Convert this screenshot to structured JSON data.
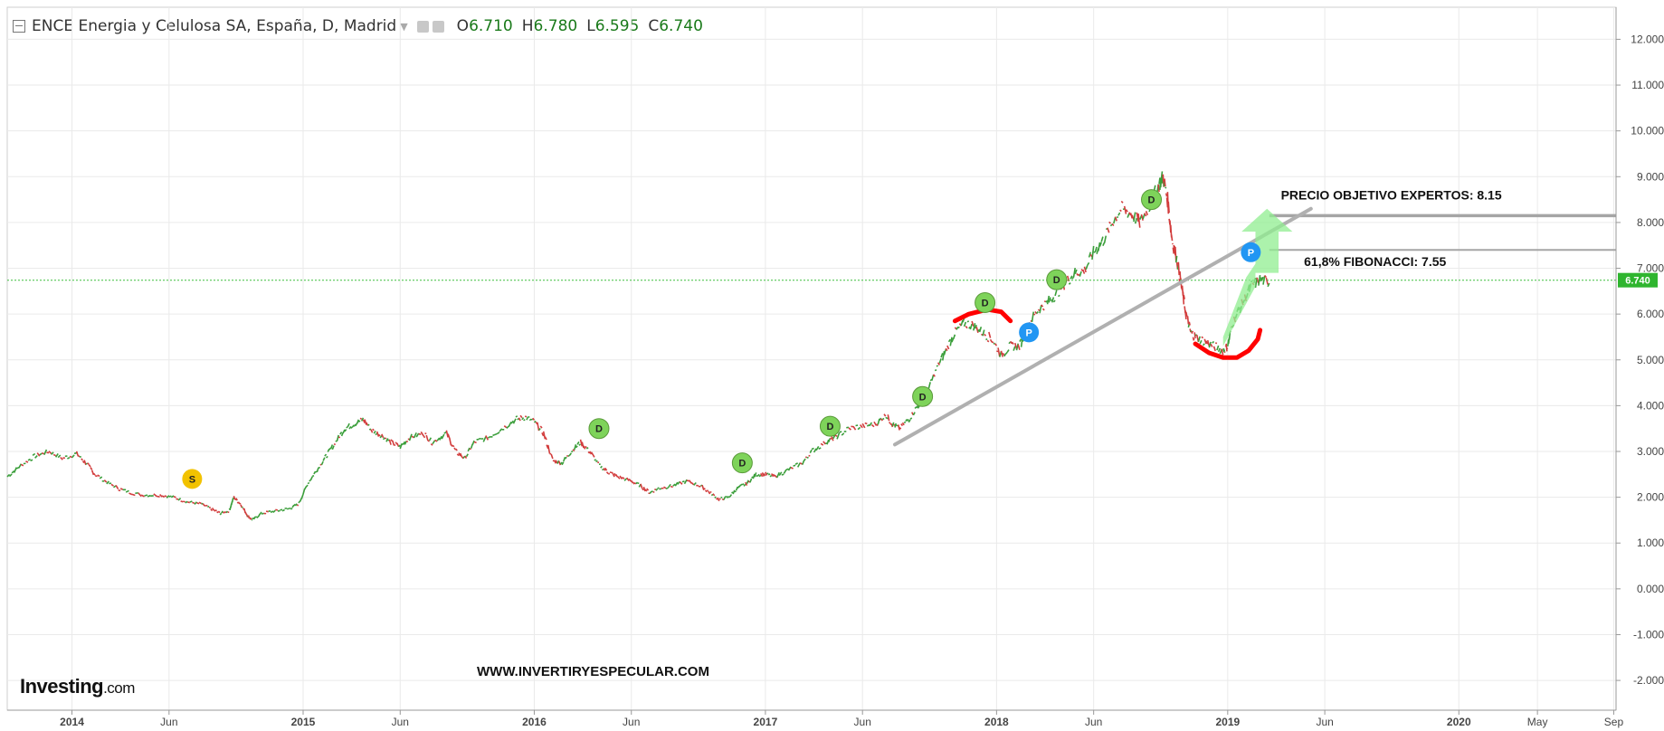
{
  "header": {
    "title": "ENCE Energia y Celulosa SA, España, D, Madrid",
    "o_label": "O",
    "o_value": "6.710",
    "h_label": "H",
    "h_value": "6.780",
    "l_label": "L",
    "l_value": "6.595",
    "c_label": "C",
    "c_value": "6.740"
  },
  "chart_data": {
    "type": "line",
    "title": "ENCE Energia y Celulosa SA, España, D, Madrid",
    "y_ticks": [
      "12.000",
      "11.000",
      "10.000",
      "9.000",
      "8.000",
      "7.000",
      "6.000",
      "5.000",
      "4.000",
      "3.000",
      "2.000",
      "1.000",
      "0.000",
      "-1.000",
      "-2.000"
    ],
    "x_ticks": [
      {
        "label": "2014",
        "t": 2014.0,
        "bold": true
      },
      {
        "label": "Jun",
        "t": 2014.42,
        "bold": false
      },
      {
        "label": "2015",
        "t": 2015.0,
        "bold": true
      },
      {
        "label": "Jun",
        "t": 2015.42,
        "bold": false
      },
      {
        "label": "2016",
        "t": 2016.0,
        "bold": true
      },
      {
        "label": "Jun",
        "t": 2016.42,
        "bold": false
      },
      {
        "label": "2017",
        "t": 2017.0,
        "bold": true
      },
      {
        "label": "Jun",
        "t": 2017.42,
        "bold": false
      },
      {
        "label": "2018",
        "t": 2018.0,
        "bold": true
      },
      {
        "label": "Jun",
        "t": 2018.42,
        "bold": false
      },
      {
        "label": "2019",
        "t": 2019.0,
        "bold": true
      },
      {
        "label": "Jun",
        "t": 2019.42,
        "bold": false
      },
      {
        "label": "2020",
        "t": 2020.0,
        "bold": true
      },
      {
        "label": "May",
        "t": 2020.34,
        "bold": false
      },
      {
        "label": "Sep",
        "t": 2020.67,
        "bold": false
      }
    ],
    "xlim": [
      2013.72,
      2020.68
    ],
    "ylim": [
      -2.65,
      12.7
    ],
    "price_series": {
      "name": "",
      "points": [
        [
          2013.72,
          2.45
        ],
        [
          2013.78,
          2.7
        ],
        [
          2013.84,
          2.9
        ],
        [
          2013.9,
          3.0
        ],
        [
          2013.96,
          2.85
        ],
        [
          2014.02,
          2.95
        ],
        [
          2014.06,
          2.75
        ],
        [
          2014.1,
          2.5
        ],
        [
          2014.16,
          2.3
        ],
        [
          2014.22,
          2.15
        ],
        [
          2014.3,
          2.05
        ],
        [
          2014.38,
          2.05
        ],
        [
          2014.44,
          2.0
        ],
        [
          2014.5,
          1.9
        ],
        [
          2014.56,
          1.85
        ],
        [
          2014.6,
          1.75
        ],
        [
          2014.64,
          1.65
        ],
        [
          2014.68,
          1.7
        ],
        [
          2014.7,
          2.0
        ],
        [
          2014.73,
          1.85
        ],
        [
          2014.76,
          1.6
        ],
        [
          2014.78,
          1.5
        ],
        [
          2014.82,
          1.65
        ],
        [
          2014.88,
          1.7
        ],
        [
          2014.94,
          1.75
        ],
        [
          2014.98,
          1.85
        ],
        [
          2015.02,
          2.3
        ],
        [
          2015.06,
          2.6
        ],
        [
          2015.1,
          2.9
        ],
        [
          2015.14,
          3.2
        ],
        [
          2015.18,
          3.5
        ],
        [
          2015.22,
          3.6
        ],
        [
          2015.26,
          3.7
        ],
        [
          2015.3,
          3.45
        ],
        [
          2015.34,
          3.35
        ],
        [
          2015.38,
          3.2
        ],
        [
          2015.42,
          3.1
        ],
        [
          2015.46,
          3.3
        ],
        [
          2015.52,
          3.4
        ],
        [
          2015.56,
          3.2
        ],
        [
          2015.62,
          3.4
        ],
        [
          2015.66,
          3.0
        ],
        [
          2015.7,
          2.85
        ],
        [
          2015.74,
          3.2
        ],
        [
          2015.8,
          3.3
        ],
        [
          2015.86,
          3.5
        ],
        [
          2015.92,
          3.7
        ],
        [
          2015.96,
          3.75
        ],
        [
          2016.0,
          3.65
        ],
        [
          2016.04,
          3.4
        ],
        [
          2016.08,
          2.8
        ],
        [
          2016.12,
          2.75
        ],
        [
          2016.16,
          3.0
        ],
        [
          2016.2,
          3.2
        ],
        [
          2016.24,
          3.0
        ],
        [
          2016.28,
          2.7
        ],
        [
          2016.32,
          2.55
        ],
        [
          2016.36,
          2.45
        ],
        [
          2016.42,
          2.35
        ],
        [
          2016.46,
          2.25
        ],
        [
          2016.5,
          2.1
        ],
        [
          2016.54,
          2.2
        ],
        [
          2016.6,
          2.25
        ],
        [
          2016.66,
          2.35
        ],
        [
          2016.72,
          2.25
        ],
        [
          2016.76,
          2.1
        ],
        [
          2016.8,
          1.95
        ],
        [
          2016.84,
          2.0
        ],
        [
          2016.88,
          2.2
        ],
        [
          2016.92,
          2.3
        ],
        [
          2016.96,
          2.5
        ],
        [
          2017.0,
          2.5
        ],
        [
          2017.04,
          2.45
        ],
        [
          2017.1,
          2.6
        ],
        [
          2017.16,
          2.75
        ],
        [
          2017.2,
          3.0
        ],
        [
          2017.26,
          3.2
        ],
        [
          2017.3,
          3.3
        ],
        [
          2017.36,
          3.5
        ],
        [
          2017.42,
          3.55
        ],
        [
          2017.48,
          3.6
        ],
        [
          2017.52,
          3.8
        ],
        [
          2017.55,
          3.6
        ],
        [
          2017.58,
          3.5
        ],
        [
          2017.62,
          3.7
        ],
        [
          2017.66,
          4.0
        ],
        [
          2017.7,
          4.3
        ],
        [
          2017.74,
          4.8
        ],
        [
          2017.78,
          5.2
        ],
        [
          2017.82,
          5.6
        ],
        [
          2017.86,
          5.8
        ],
        [
          2017.9,
          5.75
        ],
        [
          2017.94,
          5.6
        ],
        [
          2017.98,
          5.45
        ],
        [
          2018.02,
          5.1
        ],
        [
          2018.06,
          5.3
        ],
        [
          2018.1,
          5.3
        ],
        [
          2018.14,
          5.8
        ],
        [
          2018.18,
          6.1
        ],
        [
          2018.22,
          6.25
        ],
        [
          2018.26,
          6.45
        ],
        [
          2018.3,
          6.7
        ],
        [
          2018.34,
          6.9
        ],
        [
          2018.38,
          6.95
        ],
        [
          2018.42,
          7.35
        ],
        [
          2018.46,
          7.6
        ],
        [
          2018.5,
          8.0
        ],
        [
          2018.54,
          8.3
        ],
        [
          2018.58,
          8.2
        ],
        [
          2018.62,
          8.0
        ],
        [
          2018.66,
          8.35
        ],
        [
          2018.7,
          8.8
        ],
        [
          2018.72,
          9.0
        ],
        [
          2018.74,
          8.5
        ],
        [
          2018.76,
          7.6
        ],
        [
          2018.78,
          7.2
        ],
        [
          2018.8,
          6.6
        ],
        [
          2018.82,
          6.0
        ],
        [
          2018.84,
          5.6
        ],
        [
          2018.86,
          5.5
        ],
        [
          2018.9,
          5.4
        ],
        [
          2018.94,
          5.3
        ],
        [
          2018.98,
          5.2
        ],
        [
          2019.0,
          5.3
        ],
        [
          2019.02,
          5.8
        ],
        [
          2019.06,
          6.2
        ],
        [
          2019.1,
          6.6
        ],
        [
          2019.14,
          6.75
        ],
        [
          2019.18,
          6.7
        ]
      ]
    },
    "current_price": "6.740",
    "signals": [
      {
        "label": "S",
        "t": 2014.52,
        "y": 2.4,
        "color": "#f2c200"
      },
      {
        "label": "D",
        "t": 2016.28,
        "y": 3.5,
        "color": "#7ed35a"
      },
      {
        "label": "D",
        "t": 2016.9,
        "y": 2.75,
        "color": "#7ed35a"
      },
      {
        "label": "D",
        "t": 2017.28,
        "y": 3.55,
        "color": "#7ed35a"
      },
      {
        "label": "D",
        "t": 2017.68,
        "y": 4.2,
        "color": "#7ed35a"
      },
      {
        "label": "D",
        "t": 2017.95,
        "y": 6.25,
        "color": "#7ed35a"
      },
      {
        "label": "P",
        "t": 2018.14,
        "y": 5.6,
        "color": "#2196f3"
      },
      {
        "label": "D",
        "t": 2018.26,
        "y": 6.75,
        "color": "#7ed35a"
      },
      {
        "label": "D",
        "t": 2018.67,
        "y": 8.5,
        "color": "#7ed35a"
      },
      {
        "label": "P",
        "t": 2019.1,
        "y": 7.35,
        "color": "#2196f3"
      }
    ],
    "annotations": [
      {
        "text": "PRECIO OBJETIVO EXPERTOS: 8.15",
        "t": 2019.23,
        "y": 8.5
      },
      {
        "text": "61,8% FIBONACCI: 7.55",
        "t": 2019.33,
        "y": 7.05
      }
    ],
    "watermark": "WWW.INVERTIRYESPECULAR.COM",
    "logo": {
      "brand": "Investing",
      "suffix": ".com"
    },
    "colors": {
      "up": "#3a9e3a",
      "down": "#d23c3c",
      "grid": "#eaeaea",
      "current_line": "#3fbf3f",
      "trendline": "#b0b0b0",
      "hand_drawn": "#ff0000",
      "arrow": "#90ee90"
    }
  }
}
